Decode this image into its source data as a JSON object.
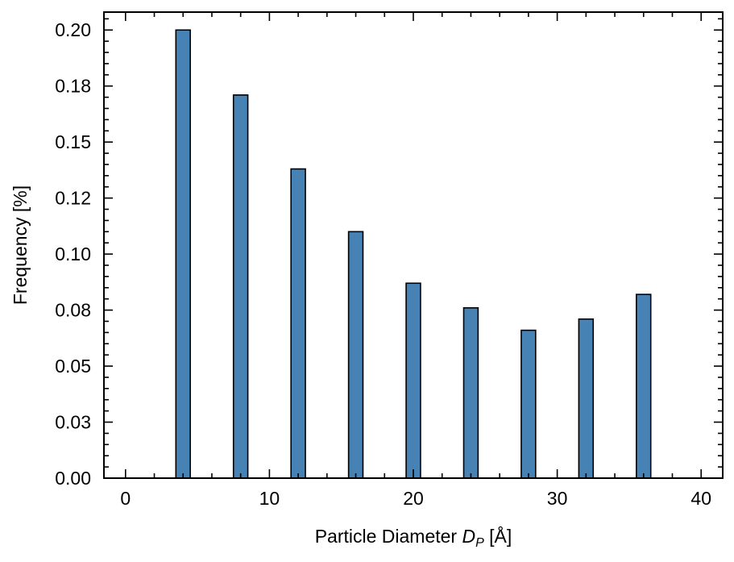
{
  "chart_data": {
    "type": "bar",
    "title": "",
    "xlabel_prefix": "Particle Diameter ",
    "xlabel_symbol": "D",
    "xlabel_subscript": "P",
    "xlabel_unit": " [Å]",
    "ylabel": "Frequency [%]",
    "xlim": [
      -1.5,
      41.5
    ],
    "ylim": [
      0,
      0.208
    ],
    "bar_width": 1.0,
    "x": [
      4,
      8,
      12,
      16,
      20,
      24,
      28,
      32,
      36
    ],
    "values": [
      0.2,
      0.171,
      0.138,
      0.11,
      0.087,
      0.076,
      0.066,
      0.071,
      0.082
    ],
    "x_ticks": [
      0,
      10,
      20,
      30,
      40
    ],
    "x_tick_labels": [
      "0",
      "10",
      "20",
      "30",
      "40"
    ],
    "y_ticks": [
      0,
      0.025,
      0.05,
      0.075,
      0.1,
      0.125,
      0.15,
      0.175,
      0.2
    ],
    "y_tick_labels": [
      "0.00",
      "0.03",
      "0.05",
      "0.08",
      "0.10",
      "0.12",
      "0.15",
      "0.18",
      "0.20"
    ],
    "x_minor_step": 2,
    "y_minor_step": 0.005,
    "grid": false,
    "legend": "none",
    "colors": {
      "bar_fill": "#4682b4",
      "bar_edge": "#000000",
      "axis": "#000000"
    }
  }
}
